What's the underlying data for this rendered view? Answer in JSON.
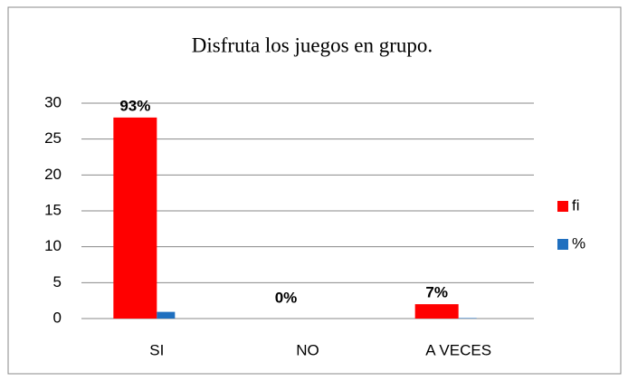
{
  "chart_data": {
    "type": "bar",
    "title": "Disfruta los juegos en grupo.",
    "categories": [
      "SI",
      "NO",
      "A VECES"
    ],
    "series": [
      {
        "name": "fi",
        "color": "#ff0000",
        "values": [
          28,
          0,
          2
        ]
      },
      {
        "name": "%",
        "color": "#1f6fbf",
        "values": [
          0.93,
          0,
          0.07
        ],
        "value_labels": [
          "93%",
          "0%",
          "7%"
        ]
      }
    ],
    "ylim": [
      0,
      30
    ],
    "yticks": [
      0,
      5,
      10,
      15,
      20,
      25,
      30
    ],
    "grid": true,
    "legend": "right"
  }
}
